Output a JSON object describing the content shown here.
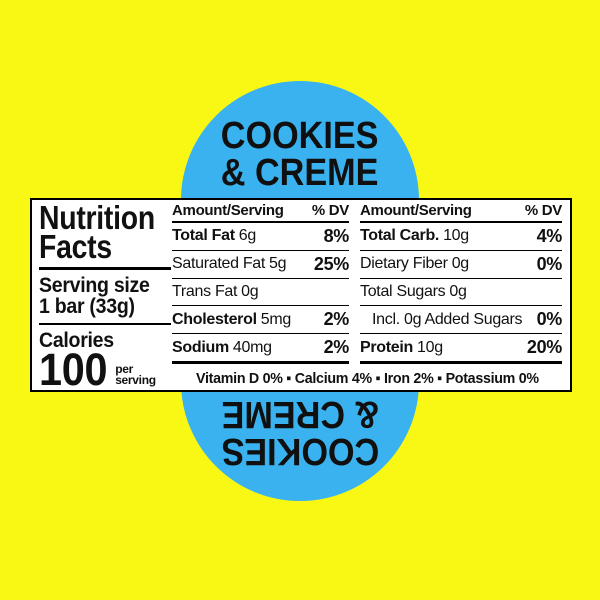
{
  "colors": {
    "background_yellow": "#F9F815",
    "capsule_blue": "#3AB2EF",
    "label_background": "#FFFFFF",
    "text_black": "#101010"
  },
  "flavor": {
    "line1": "COOKIES",
    "line2": "& CREME"
  },
  "nutrition": {
    "title_line1": "Nutrition",
    "title_line2": "Facts",
    "serving_size_label": "Serving size",
    "serving_size_value": "1 bar (33g)",
    "calories_label": "Calories",
    "calories_value": "100",
    "calories_per_line1": "per",
    "calories_per_line2": "serving",
    "header_amount": "Amount/Serving",
    "header_dv": "% DV",
    "col1_rows": [
      {
        "name": "Total Fat",
        "amount": "6g",
        "dv": "8%"
      },
      {
        "name": "Saturated Fat",
        "amount": "5g",
        "dv": "25%"
      },
      {
        "name": "Trans Fat",
        "amount": "0g",
        "dv": ""
      },
      {
        "name": "Cholesterol",
        "amount": "5mg",
        "dv": "2%"
      },
      {
        "name": "Sodium",
        "amount": "40mg",
        "dv": "2%"
      }
    ],
    "col2_rows": [
      {
        "name": "Total Carb.",
        "amount": "10g",
        "dv": "4%"
      },
      {
        "name": "Dietary Fiber",
        "amount": "0g",
        "dv": "0%"
      },
      {
        "name": "Total Sugars",
        "amount": "0g",
        "dv": ""
      },
      {
        "name": "Incl. 0g Added Sugars",
        "amount": "",
        "dv": "0%"
      },
      {
        "name": "Protein",
        "amount": "10g",
        "dv": "20%"
      }
    ],
    "micronutrients": "Vitamin D 0% ▪ Calcium 4% ▪ Iron 2% ▪ Potassium 0%"
  }
}
